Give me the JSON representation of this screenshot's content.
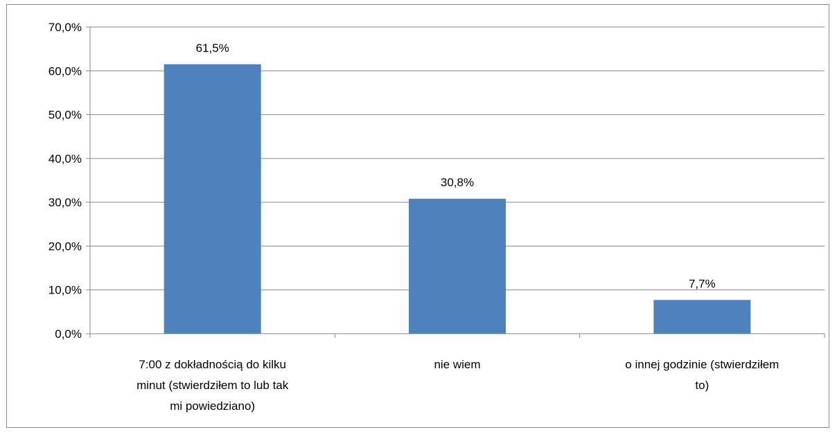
{
  "chart_data": {
    "type": "bar",
    "categories": [
      [
        "7:00 z dokładnością do kilku",
        "minut (stwierdziłem  to lub tak",
        "mi powiedziano)"
      ],
      [
        "nie wiem"
      ],
      [
        "o innej godzinie (stwierdziłem",
        "to)"
      ]
    ],
    "values": [
      61.5,
      30.8,
      7.7
    ],
    "data_labels": [
      "61,5%",
      "30,8%",
      "7,7%"
    ],
    "y_ticks": [
      "0,0%",
      "10,0%",
      "20,0%",
      "30,0%",
      "40,0%",
      "50,0%",
      "60,0%",
      "70,0%"
    ],
    "ylim": [
      0,
      70
    ],
    "y_step": 10,
    "grid": true,
    "legend": "none",
    "bar_color": "#4f81bd",
    "grid_color": "#868686",
    "title": "",
    "xlabel": "",
    "ylabel": ""
  }
}
